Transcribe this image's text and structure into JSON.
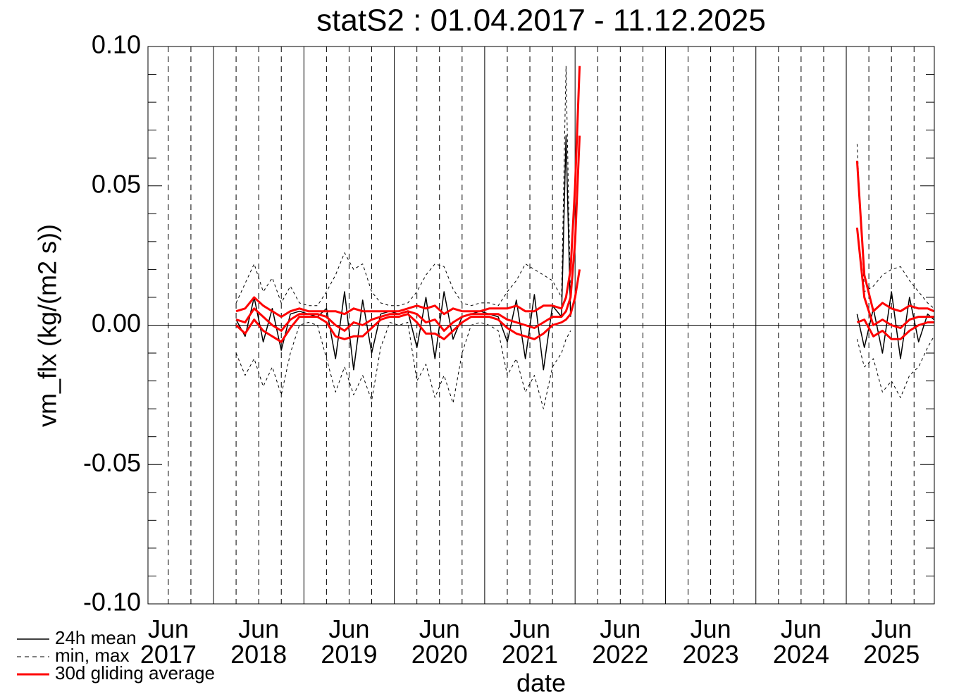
{
  "chart_data": {
    "type": "line",
    "title": "statS2 : 01.04.2017 - 11.12.2025",
    "xlabel": "date",
    "ylabel": "vm_flx (kg/(m2 s))",
    "xlim": [
      2017.275,
      2025.974
    ],
    "ylim": [
      -0.1,
      0.1
    ],
    "xticks": [
      {
        "value": 2017.5,
        "label": "Jun 2017"
      },
      {
        "value": 2018.5,
        "label": "Jun 2018"
      },
      {
        "value": 2019.5,
        "label": "Jun 2019"
      },
      {
        "value": 2020.5,
        "label": "Jun 2020"
      },
      {
        "value": 2021.5,
        "label": "Jun 2021"
      },
      {
        "value": 2022.5,
        "label": "Jun 2022"
      },
      {
        "value": 2023.5,
        "label": "Jun 2023"
      },
      {
        "value": 2024.5,
        "label": "Jun 2024"
      },
      {
        "value": 2025.5,
        "label": "Jun 2025"
      }
    ],
    "xgrid_major": [
      2018,
      2019,
      2020,
      2021,
      2022,
      2023,
      2024,
      2025
    ],
    "xgrid_minor": [
      2017.75,
      2018.25,
      2018.75,
      2019.25,
      2019.75,
      2020.25,
      2020.75,
      2021.25,
      2021.75,
      2022.25,
      2022.75,
      2023.25,
      2023.75,
      2024.25,
      2024.75,
      2025.25,
      2025.75
    ],
    "yticks": [
      {
        "value": -0.1,
        "label": "-0.10"
      },
      {
        "value": -0.05,
        "label": "-0.05"
      },
      {
        "value": 0,
        "label": "0.00"
      },
      {
        "value": 0.05,
        "label": "0.05"
      },
      {
        "value": 0.1,
        "label": "0.10"
      }
    ],
    "yminor": [
      -0.09,
      -0.08,
      -0.07,
      -0.06,
      -0.04,
      -0.03,
      -0.02,
      -0.01,
      0.01,
      0.02,
      0.03,
      0.04,
      0.06,
      0.07,
      0.08,
      0.09
    ],
    "zero_line": true,
    "legend": "bottom-left",
    "x": [
      2018.25,
      2018.35,
      2018.45,
      2018.55,
      2018.65,
      2018.75,
      2018.85,
      2018.95,
      2019.05,
      2019.15,
      2019.25,
      2019.35,
      2019.45,
      2019.55,
      2019.65,
      2019.75,
      2019.85,
      2019.95,
      2020.05,
      2020.15,
      2020.25,
      2020.35,
      2020.45,
      2020.55,
      2020.65,
      2020.75,
      2020.85,
      2020.95,
      2021.05,
      2021.15,
      2021.25,
      2021.35,
      2021.45,
      2021.55,
      2021.65,
      2021.75,
      2021.85,
      2021.9,
      2021.95,
      2022.0,
      2022.05,
      2023.5,
      2025.12,
      2025.2,
      2025.3,
      2025.4,
      2025.5,
      2025.6,
      2025.7,
      2025.8,
      2025.9,
      2025.97
    ],
    "series": [
      {
        "name": "24h mean",
        "color": "#000000",
        "width": 1.5,
        "values": [
          0.002,
          -0.004,
          0.01,
          -0.006,
          0.006,
          -0.009,
          0.004,
          0.005,
          0.004,
          0.003,
          0.006,
          -0.012,
          0.012,
          -0.016,
          0.009,
          -0.01,
          0.004,
          0.005,
          0.004,
          0.005,
          -0.008,
          0.01,
          -0.012,
          0.012,
          -0.005,
          0.003,
          0.004,
          0.005,
          0.004,
          0.003,
          -0.006,
          0.009,
          -0.012,
          0.011,
          -0.016,
          0.007,
          0.003,
          0.068,
          0.003,
          null,
          null,
          null,
          0.004,
          -0.008,
          0.006,
          -0.01,
          0.012,
          -0.012,
          0.01,
          -0.006,
          0.004,
          0.002
        ]
      },
      {
        "name": "min, max",
        "color": "#000000",
        "width": 1,
        "dash": true,
        "values": [
          0.008,
          0.015,
          0.022,
          0.012,
          0.017,
          0.008,
          0.014,
          0.008,
          0.007,
          0.007,
          0.012,
          0.018,
          0.026,
          0.02,
          0.022,
          0.012,
          0.008,
          0.007,
          0.007,
          0.008,
          0.012,
          0.018,
          0.022,
          0.021,
          0.013,
          0.008,
          0.007,
          0.008,
          0.008,
          0.007,
          0.012,
          0.016,
          0.022,
          0.02,
          0.018,
          0.016,
          0.01,
          0.093,
          0.008,
          null,
          null,
          null,
          0.065,
          0.012,
          0.014,
          0.018,
          0.02,
          0.021,
          0.016,
          0.012,
          0.008,
          0.006
        ],
        "lower": [
          -0.01,
          -0.018,
          -0.012,
          -0.022,
          -0.015,
          -0.025,
          -0.01,
          0.0,
          0.001,
          0.0,
          -0.012,
          -0.024,
          -0.015,
          -0.025,
          -0.018,
          -0.027,
          -0.008,
          0.001,
          0.0,
          0.001,
          -0.02,
          -0.014,
          -0.026,
          -0.018,
          -0.028,
          -0.01,
          0.0,
          0.001,
          0.0,
          -0.002,
          -0.018,
          -0.012,
          -0.024,
          -0.018,
          -0.03,
          -0.015,
          -0.01,
          -0.005,
          -0.002,
          null,
          null,
          null,
          -0.005,
          -0.015,
          -0.012,
          -0.024,
          -0.02,
          -0.026,
          -0.018,
          -0.015,
          -0.008,
          -0.004
        ]
      },
      {
        "name": "30d gliding average",
        "color": "#ff0000",
        "width": 3,
        "values": [
          0.002,
          0.001,
          0.006,
          0.003,
          0.0,
          -0.002,
          0.002,
          0.004,
          0.004,
          0.004,
          0.003,
          0.0,
          -0.002,
          0.001,
          0.0,
          0.002,
          0.003,
          0.004,
          0.004,
          0.005,
          0.004,
          0.001,
          0.002,
          -0.002,
          0.001,
          0.003,
          0.004,
          0.004,
          0.004,
          0.004,
          0.002,
          0.001,
          0.0,
          -0.001,
          0.001,
          0.003,
          0.003,
          0.005,
          0.01,
          0.03,
          0.068,
          null,
          0.035,
          0.01,
          0.0,
          0.002,
          0.0,
          -0.001,
          0.002,
          0.003,
          0.003,
          0.003
        ],
        "upper": [
          0.005,
          0.006,
          0.01,
          0.007,
          0.005,
          0.003,
          0.005,
          0.006,
          0.005,
          0.005,
          0.005,
          0.005,
          0.004,
          0.006,
          0.005,
          0.005,
          0.005,
          0.005,
          0.005,
          0.006,
          0.007,
          0.006,
          0.007,
          0.004,
          0.006,
          0.005,
          0.005,
          0.005,
          0.006,
          0.006,
          0.006,
          0.007,
          0.005,
          0.005,
          0.007,
          0.007,
          0.006,
          0.01,
          0.02,
          0.05,
          0.093,
          null,
          0.059,
          0.018,
          0.005,
          0.008,
          0.006,
          0.005,
          0.007,
          0.006,
          0.006,
          0.005
        ],
        "lower": [
          0.0,
          -0.003,
          0.002,
          -0.002,
          -0.004,
          -0.006,
          -0.001,
          0.003,
          0.003,
          0.003,
          0.001,
          -0.004,
          -0.005,
          -0.004,
          -0.004,
          -0.001,
          0.002,
          0.003,
          0.003,
          0.004,
          0.001,
          -0.003,
          -0.003,
          -0.005,
          -0.002,
          0.001,
          0.003,
          0.003,
          0.003,
          0.002,
          -0.001,
          -0.003,
          -0.004,
          -0.005,
          -0.003,
          0.0,
          0.001,
          0.002,
          0.004,
          0.01,
          0.02,
          null,
          0.001,
          0.002,
          -0.004,
          -0.002,
          -0.005,
          -0.005,
          -0.002,
          0.0,
          0.001,
          0.001
        ]
      }
    ]
  }
}
